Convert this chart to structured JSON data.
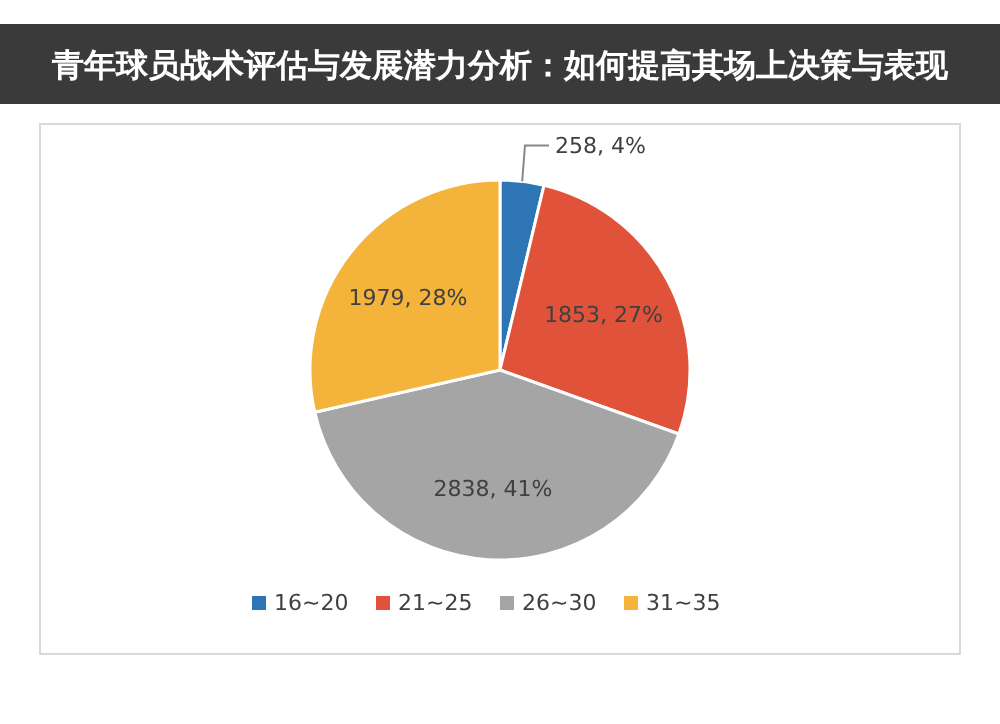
{
  "chart_data": {
    "type": "pie",
    "title": "青年球员战术评估与发展潜力分析：如何提高其场上决策与表现",
    "categories": [
      "16~20",
      "21~25",
      "26~30",
      "31~35"
    ],
    "values": [
      258,
      1853,
      2838,
      1979
    ],
    "colors": [
      "#2e75b6",
      "#e0533a",
      "#a5a5a5",
      "#f4b33a"
    ],
    "value_labels": [
      "258, 4%",
      "1853, 27%",
      "2838, 41%",
      "1979, 28%"
    ],
    "legend": "bottom"
  }
}
